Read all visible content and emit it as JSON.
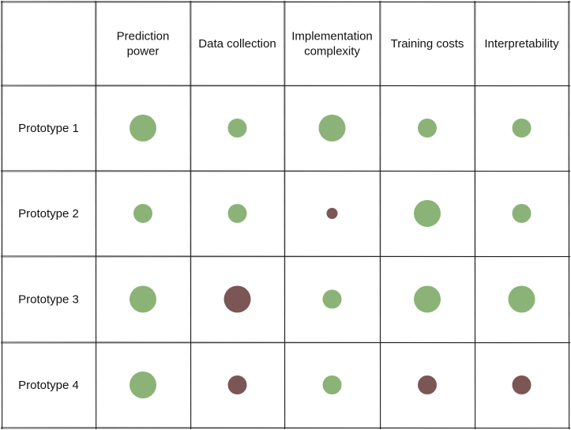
{
  "colors": {
    "good": "#8BB377",
    "bad": "#7C5555",
    "grid": "#222222"
  },
  "columns": [
    {
      "label_lines": [
        "Prediction",
        "power"
      ]
    },
    {
      "label_lines": [
        "Data collection"
      ]
    },
    {
      "label_lines": [
        "Implementation",
        "complexity"
      ]
    },
    {
      "label_lines": [
        "Training costs"
      ]
    },
    {
      "label_lines": [
        "Interpretability"
      ]
    }
  ],
  "rows": [
    {
      "label": "Prototype 1",
      "cells": [
        {
          "tone": "good",
          "level": 3
        },
        {
          "tone": "good",
          "level": 2
        },
        {
          "tone": "good",
          "level": 3
        },
        {
          "tone": "good",
          "level": 2
        },
        {
          "tone": "good",
          "level": 2
        }
      ]
    },
    {
      "label": "Prototype 2",
      "cells": [
        {
          "tone": "good",
          "level": 2
        },
        {
          "tone": "good",
          "level": 2
        },
        {
          "tone": "bad",
          "level": 1
        },
        {
          "tone": "good",
          "level": 3
        },
        {
          "tone": "good",
          "level": 2
        }
      ]
    },
    {
      "label": "Prototype 3",
      "cells": [
        {
          "tone": "good",
          "level": 3
        },
        {
          "tone": "bad",
          "level": 3
        },
        {
          "tone": "good",
          "level": 2
        },
        {
          "tone": "good",
          "level": 3
        },
        {
          "tone": "good",
          "level": 3
        }
      ]
    },
    {
      "label": "Prototype 4",
      "cells": [
        {
          "tone": "good",
          "level": 3
        },
        {
          "tone": "bad",
          "level": 2
        },
        {
          "tone": "good",
          "level": 2
        },
        {
          "tone": "bad",
          "level": 2
        },
        {
          "tone": "bad",
          "level": 2
        }
      ]
    }
  ]
}
